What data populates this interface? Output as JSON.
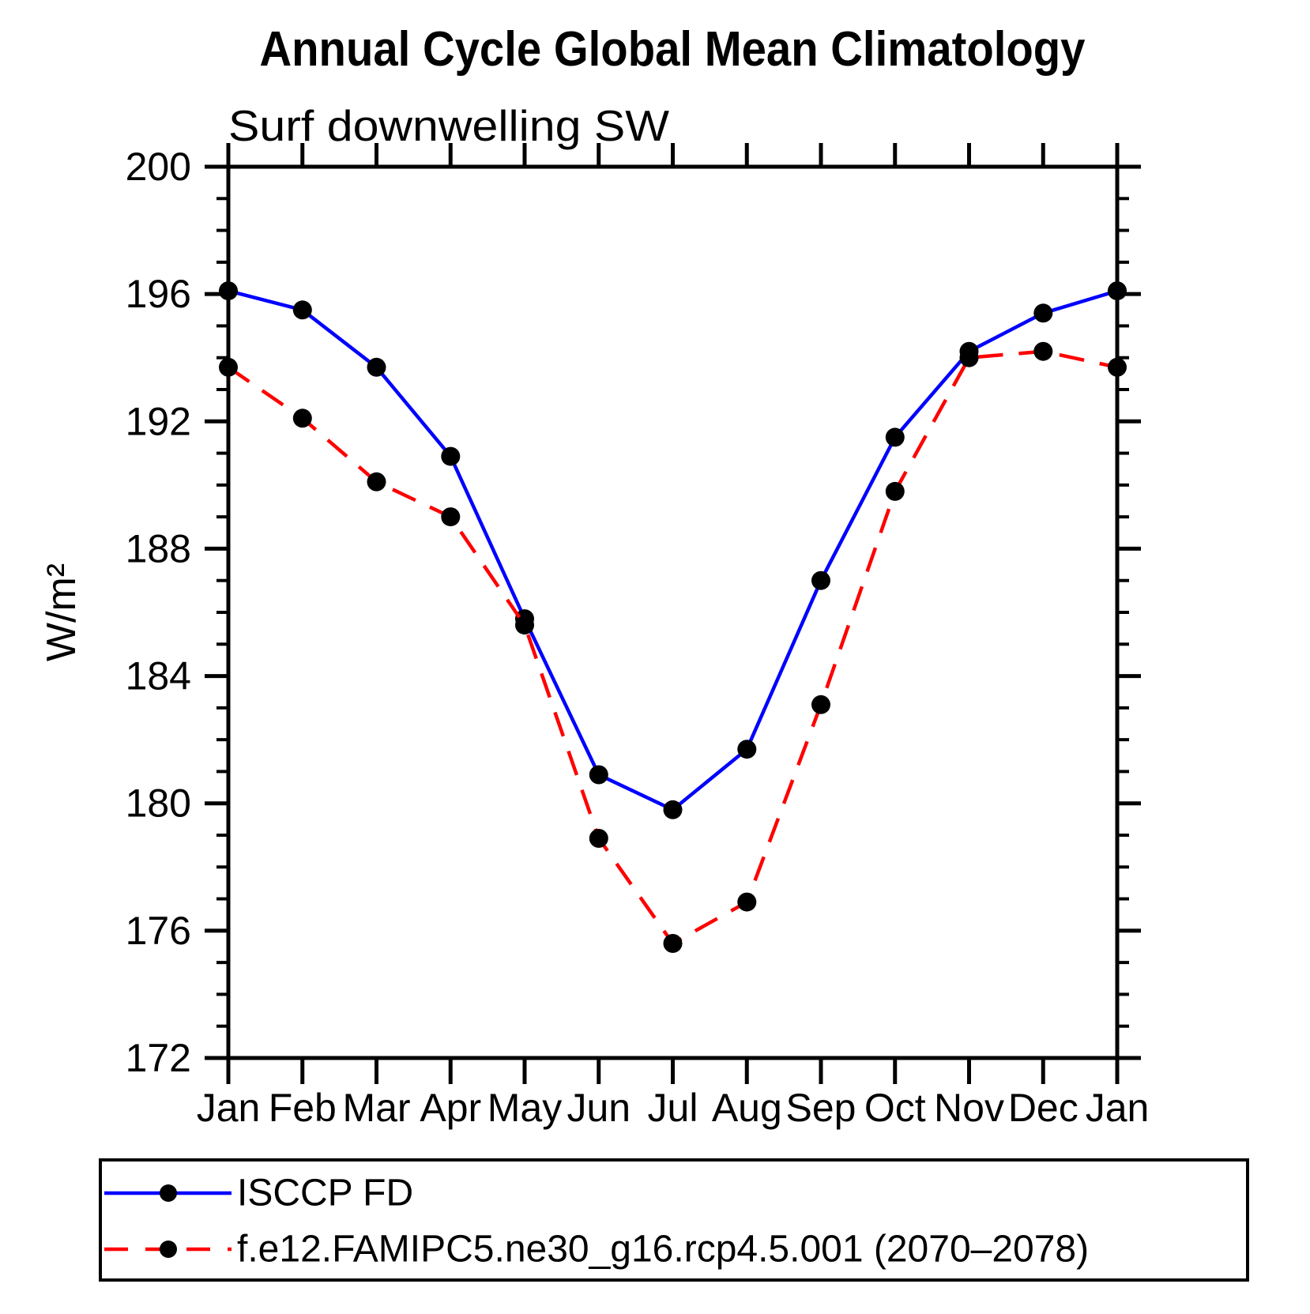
{
  "page": {
    "background_color": "#ffffff",
    "text_color": "#000000"
  },
  "chart_data": {
    "type": "line",
    "title": "Annual Cycle Global Mean Climatology",
    "subtitle": "Surf downwelling SW",
    "ylabel": "W/m²",
    "xlabel": "",
    "categories": [
      "Jan",
      "Feb",
      "Mar",
      "Apr",
      "May",
      "Jun",
      "Jul",
      "Aug",
      "Sep",
      "Oct",
      "Nov",
      "Dec",
      "Jan"
    ],
    "ylim": [
      172,
      200
    ],
    "y_major_tick_step": 4,
    "y_minor_tick_step": 1,
    "y_tick_labels": [
      "200",
      "196",
      "192",
      "188",
      "184",
      "180",
      "176",
      "172"
    ],
    "grid": false,
    "legend_position": "bottom-left-box",
    "marker": "filled-circle",
    "marker_color": "#000000",
    "frame_color": "#000000",
    "series": [
      {
        "name": "ISCCP FD",
        "color": "#0000ff",
        "line_style": "solid",
        "values": [
          196.1,
          195.5,
          193.7,
          190.9,
          185.8,
          180.9,
          179.8,
          181.7,
          187.0,
          191.5,
          194.2,
          195.4,
          196.1
        ]
      },
      {
        "name": "f.e12.FAMIPC5.ne30_g16.rcp4.5.001 (2070–2078)",
        "color": "#ff0000",
        "line_style": "dashed",
        "values": [
          193.7,
          192.1,
          190.1,
          189.0,
          185.6,
          178.9,
          175.6,
          176.9,
          183.1,
          189.8,
          194.0,
          194.2,
          193.7
        ]
      }
    ]
  }
}
